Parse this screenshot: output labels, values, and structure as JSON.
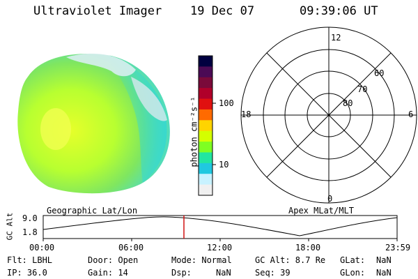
{
  "header": {
    "instrument": "Ultraviolet Imager",
    "date": "19 Dec 07",
    "time": "09:39:06 UT"
  },
  "colorbar": {
    "unit_label": "photon cm⁻²s⁻¹",
    "ticks": [
      "100",
      "10"
    ],
    "colors": [
      "#000040",
      "#4b0a55",
      "#7a0a3a",
      "#b0002a",
      "#e01010",
      "#ff6a00",
      "#ffd400",
      "#d4ff00",
      "#7eff22",
      "#22e6a0",
      "#20c8e0",
      "#c8f2ff",
      "#f0f0f0"
    ]
  },
  "polar": {
    "labels": [
      "12",
      "60",
      "70",
      "80",
      "18",
      "6",
      "0"
    ]
  },
  "panel_labels": {
    "left": "Geographic Lat/Lon",
    "right": "Apex MLat/MLT"
  },
  "orbit": {
    "axis_label": "GC Alt",
    "ticks_y": [
      "9.0",
      "1.8"
    ],
    "ticks_x": [
      "00:00",
      "06:00",
      "12:00",
      "18:00",
      "23:59"
    ]
  },
  "status": {
    "flt": "Flt: LBHL",
    "door": "Door: Open",
    "mode": "Mode: Normal",
    "gcalt": "GC Alt: 8.7 Re",
    "glat_label": "GLat:",
    "glat_val": "NaN",
    "ip": "IP: 36.0",
    "gain": "Gain: 14",
    "dsp_label": "Dsp:",
    "dsp_val": "NaN",
    "seq": "Seq: 39",
    "glon_label": "GLon:",
    "glon_val": "NaN"
  }
}
